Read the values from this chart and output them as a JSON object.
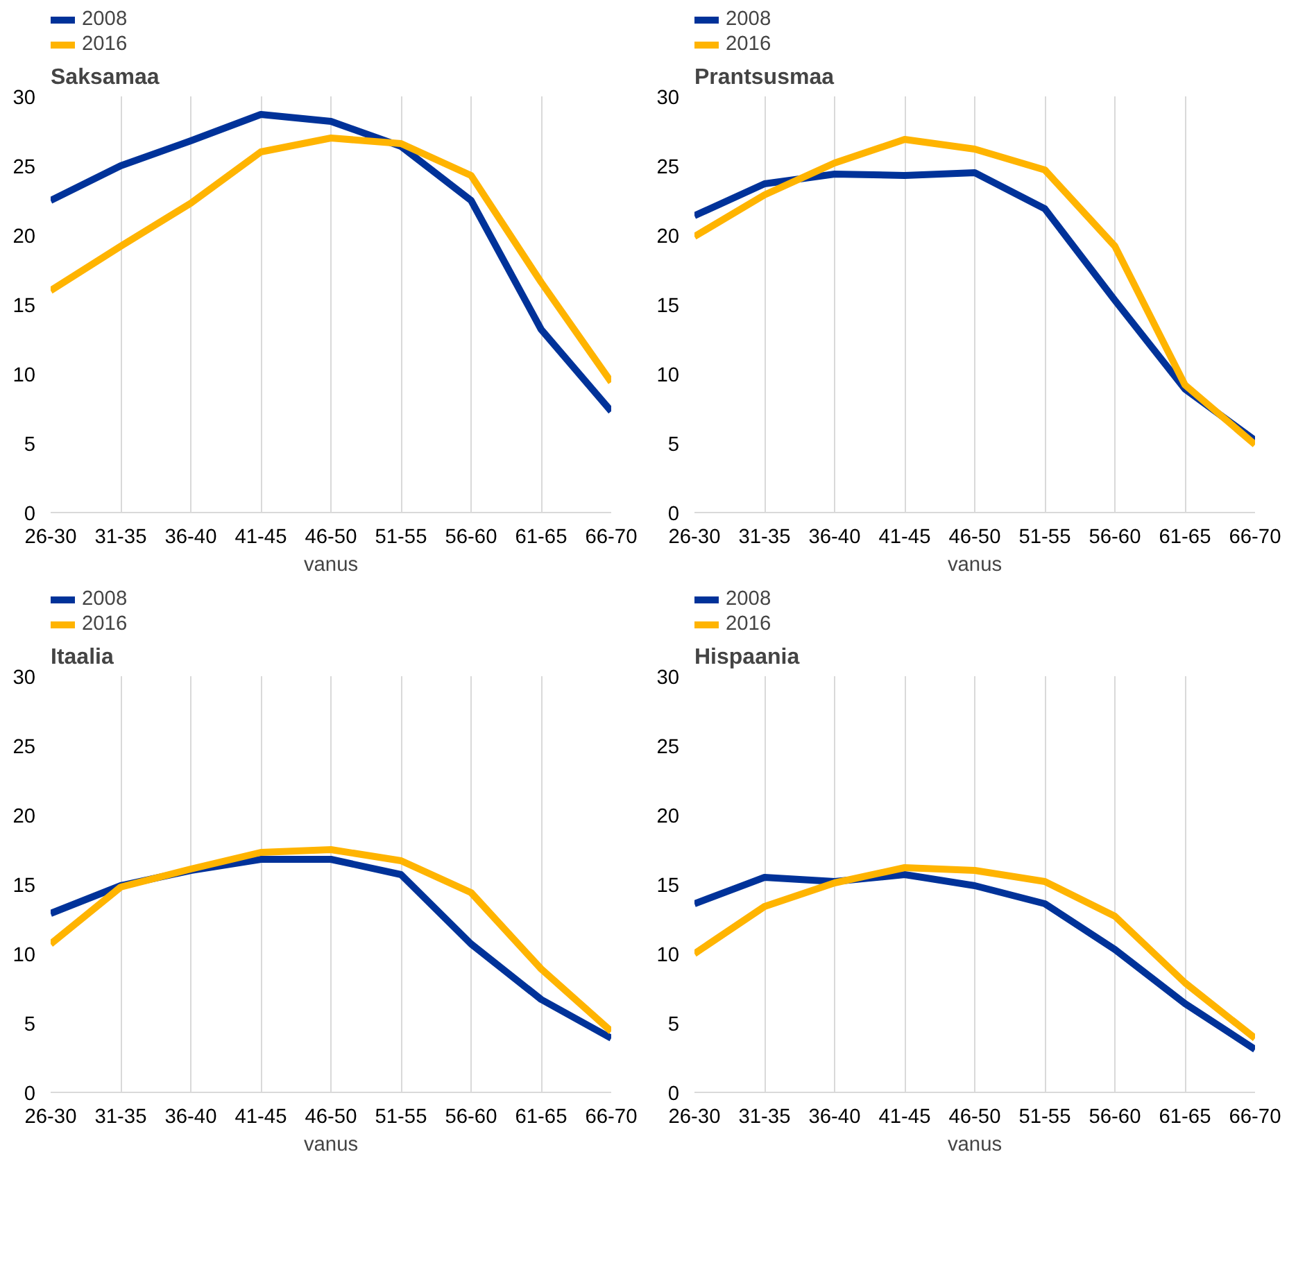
{
  "chart_data": [
    {
      "type": "line",
      "title": "Saksamaa",
      "xlabel": "vanus",
      "categories": [
        "26-30",
        "31-35",
        "36-40",
        "41-45",
        "46-50",
        "51-55",
        "56-60",
        "61-65",
        "66-70"
      ],
      "ylim": [
        0,
        30
      ],
      "yticks": [
        0,
        5,
        10,
        15,
        20,
        25,
        30
      ],
      "grid": "x",
      "legend": "top left",
      "marker": "none",
      "series": [
        {
          "name": "2008",
          "color": "#003299",
          "values": [
            22.5,
            25.0,
            26.8,
            28.7,
            28.2,
            26.4,
            22.5,
            13.2,
            7.3
          ]
        },
        {
          "name": "2016",
          "color": "#ffb400",
          "values": [
            16.0,
            19.2,
            22.3,
            26.0,
            27.0,
            26.6,
            24.3,
            16.6,
            9.4
          ]
        }
      ]
    },
    {
      "type": "line",
      "title": "Prantsusmaa",
      "xlabel": "vanus",
      "categories": [
        "26-30",
        "31-35",
        "36-40",
        "41-45",
        "46-50",
        "51-55",
        "56-60",
        "61-65",
        "66-70"
      ],
      "ylim": [
        0,
        30
      ],
      "yticks": [
        0,
        5,
        10,
        15,
        20,
        25,
        30
      ],
      "grid": "x",
      "legend": "top left",
      "marker": "none",
      "series": [
        {
          "name": "2008",
          "color": "#003299",
          "values": [
            21.4,
            23.7,
            24.4,
            24.3,
            24.5,
            21.9,
            15.3,
            8.9,
            5.2
          ]
        },
        {
          "name": "2016",
          "color": "#ffb400",
          "values": [
            19.9,
            22.9,
            25.2,
            26.9,
            26.2,
            24.7,
            19.2,
            9.2,
            4.9
          ]
        }
      ]
    },
    {
      "type": "line",
      "title": "Itaalia",
      "xlabel": "vanus",
      "categories": [
        "26-30",
        "31-35",
        "36-40",
        "41-45",
        "46-50",
        "51-55",
        "56-60",
        "61-65",
        "66-70"
      ],
      "ylim": [
        0,
        30
      ],
      "yticks": [
        0,
        5,
        10,
        15,
        20,
        25,
        30
      ],
      "grid": "x",
      "legend": "top left",
      "marker": "none",
      "series": [
        {
          "name": "2008",
          "color": "#003299",
          "values": [
            12.9,
            14.9,
            16.0,
            16.8,
            16.8,
            15.7,
            10.7,
            6.7,
            3.9
          ]
        },
        {
          "name": "2016",
          "color": "#ffb400",
          "values": [
            10.7,
            14.8,
            16.1,
            17.3,
            17.5,
            16.7,
            14.4,
            8.9,
            4.4
          ]
        }
      ]
    },
    {
      "type": "line",
      "title": "Hispaania",
      "xlabel": "vanus",
      "categories": [
        "26-30",
        "31-35",
        "36-40",
        "41-45",
        "46-50",
        "51-55",
        "56-60",
        "61-65",
        "66-70"
      ],
      "ylim": [
        0,
        30
      ],
      "yticks": [
        0,
        5,
        10,
        15,
        20,
        25,
        30
      ],
      "grid": "x",
      "legend": "top left",
      "marker": "none",
      "series": [
        {
          "name": "2008",
          "color": "#003299",
          "values": [
            13.6,
            15.5,
            15.2,
            15.7,
            14.9,
            13.6,
            10.3,
            6.4,
            3.1
          ]
        },
        {
          "name": "2016",
          "color": "#ffb400",
          "values": [
            10.0,
            13.4,
            15.1,
            16.2,
            16.0,
            15.2,
            12.7,
            7.9,
            3.9
          ]
        }
      ]
    }
  ]
}
